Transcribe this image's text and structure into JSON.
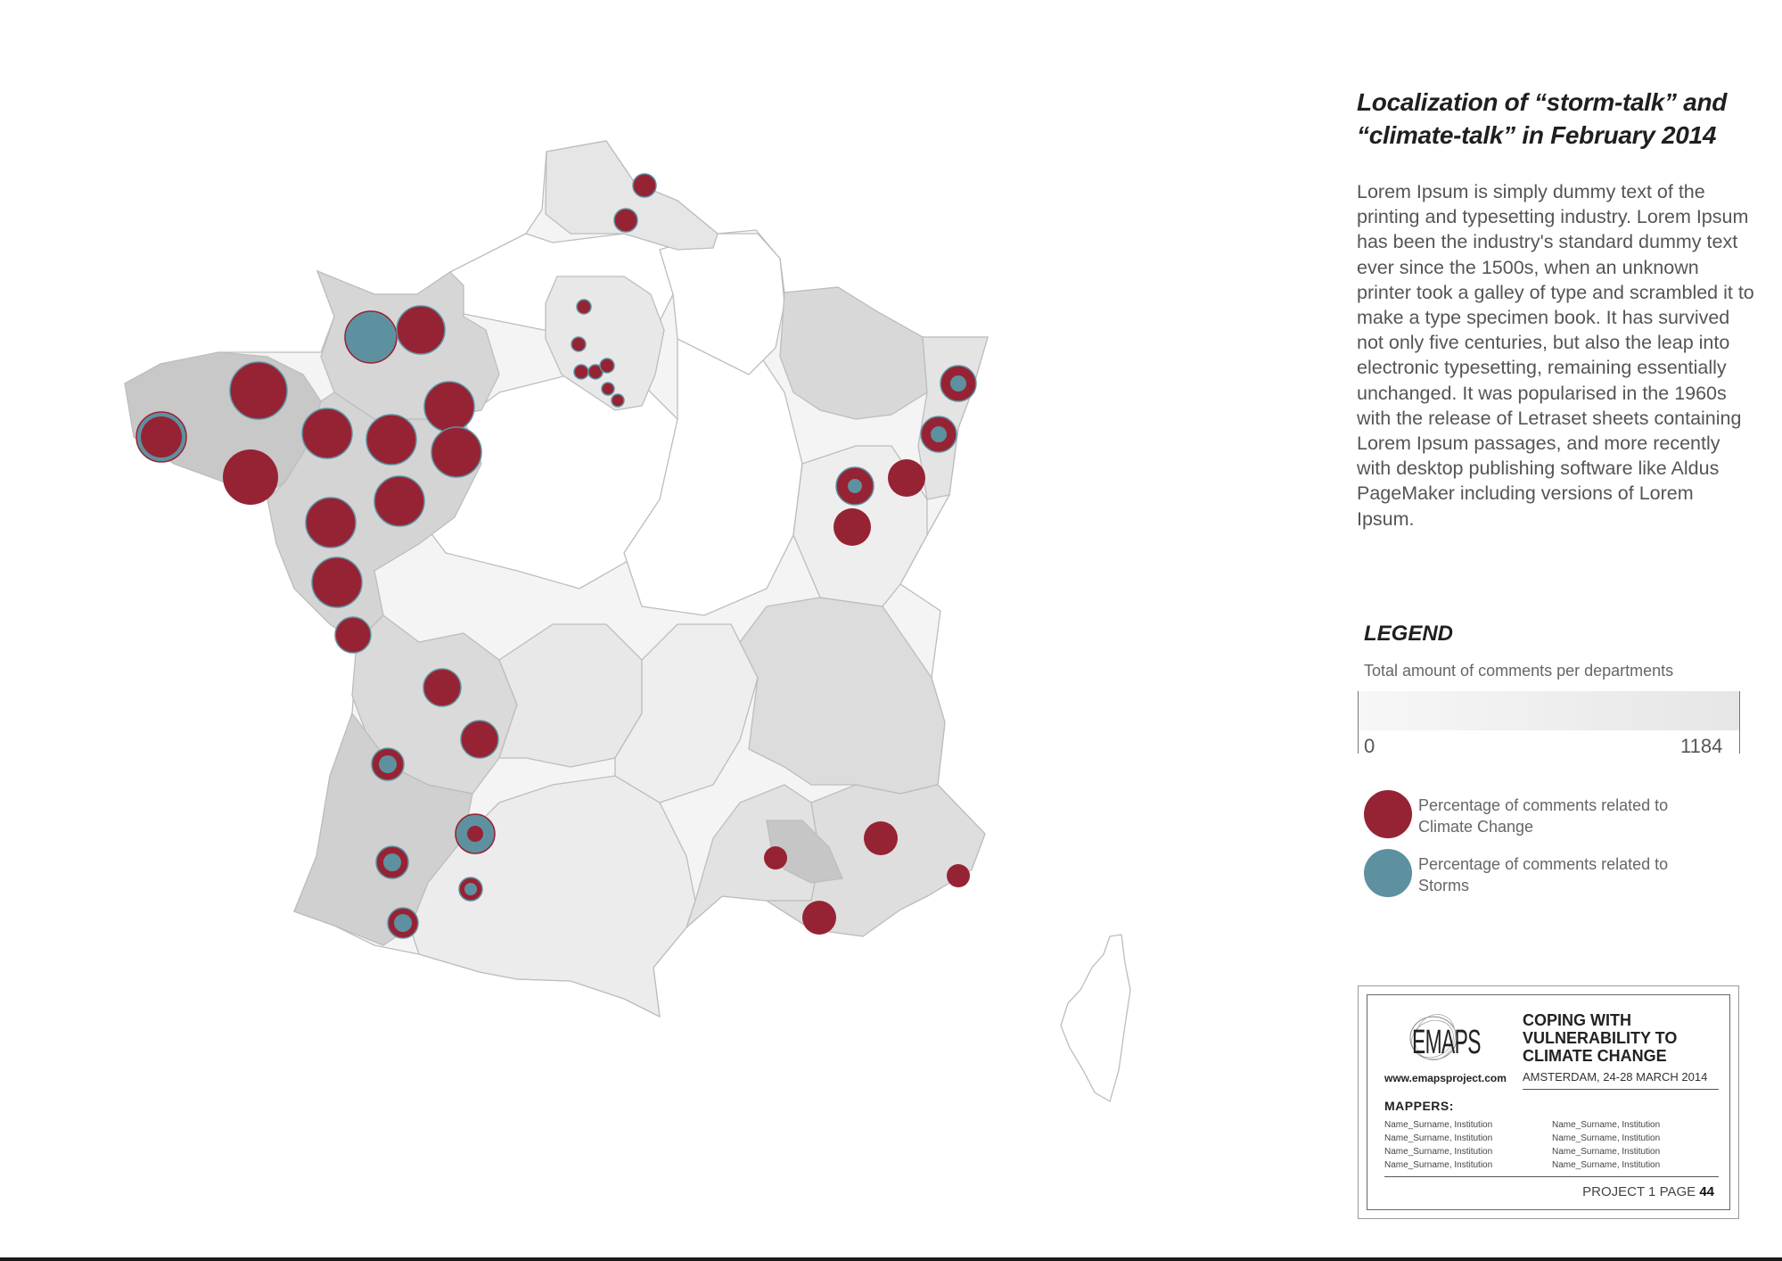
{
  "title": "Localization of “storm-talk” and “climate-talk” in February 2014",
  "description": "Lorem Ipsum is simply dummy text of the printing and typesetting industry. Lorem Ipsum has been the industry's standard dummy text ever since the 1500s, when an unknown printer took a galley of type and scrambled it to make a type specimen book. It has survived not only five centuries, but also the leap into electronic typesetting, remaining essentially unchanged. It was popularised in the 1960s with the release of Letraset sheets containing Lorem Ipsum passages, and more recently with desktop publishing software like Aldus PageMaker including versions of Lorem Ipsum.",
  "legend": {
    "title": "LEGEND",
    "subtitle": "Total amount of comments per departments",
    "scale_min": "0",
    "scale_max": "1184",
    "items": [
      {
        "label": "Percentage of comments related to Climate Change",
        "color": "#962334"
      },
      {
        "label": "Percentage of comments related to Storms",
        "color": "#5e91a0"
      }
    ]
  },
  "colors": {
    "climate": "#962334",
    "storms": "#5e91a0",
    "region_dark": "#cfcfcf",
    "region_mid": "#dedede",
    "region_light": "#eeeeee"
  },
  "credits": {
    "logo_text": "EMAPS",
    "url": "www.emapsproject.com",
    "project_title": "COPING WITH VULNERABILITY TO CLIMATE CHANGE",
    "location": "AMSTERDAM, 24-28 MARCH 2014",
    "mappers_label": "MAPPERS:",
    "mappers": [
      "Name_Surname, Institution",
      "Name_Surname, Institution",
      "Name_Surname, Institution",
      "Name_Surname, Institution",
      "Name_Surname, Institution",
      "Name_Surname, Institution",
      "Name_Surname, Institution",
      "Name_Surname, Institution"
    ],
    "page_prefix": "PROJECT 1 PAGE",
    "page_number": "44"
  }
}
